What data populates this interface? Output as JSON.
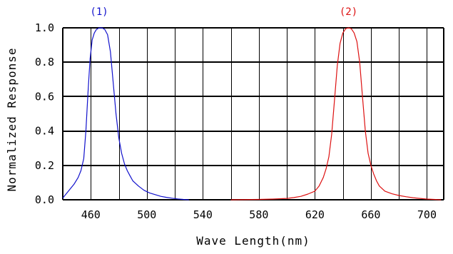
{
  "chart_data": {
    "type": "line",
    "title": "",
    "xlabel": "Wave Length(nm)",
    "ylabel": "Normalized  Response",
    "xlim": [
      440,
      712
    ],
    "ylim": [
      0,
      1.0
    ],
    "x_ticks": [
      460,
      500,
      540,
      580,
      620,
      660,
      700
    ],
    "y_ticks": [
      0.0,
      0.2,
      0.4,
      0.6,
      0.8,
      1.0
    ],
    "y_tick_labels": [
      "0.0",
      "0.2",
      "0.4",
      "0.6",
      "0.8",
      "1.0"
    ],
    "grid": true,
    "series": [
      {
        "name": "(1)",
        "color": "#1111cc",
        "x": [
          440,
          442,
          445,
          448,
          451,
          453,
          455,
          456.5,
          458,
          459.5,
          461,
          462.5,
          464,
          466,
          468,
          470,
          472,
          474,
          476,
          478,
          480,
          482,
          484,
          486,
          488,
          490,
          494,
          498,
          502,
          506,
          510,
          514,
          518,
          522,
          526,
          530
        ],
        "y": [
          0.01,
          0.03,
          0.06,
          0.09,
          0.13,
          0.17,
          0.24,
          0.4,
          0.62,
          0.82,
          0.93,
          0.97,
          0.99,
          1.0,
          1.0,
          0.99,
          0.96,
          0.86,
          0.68,
          0.5,
          0.36,
          0.27,
          0.21,
          0.17,
          0.14,
          0.11,
          0.08,
          0.055,
          0.04,
          0.03,
          0.02,
          0.014,
          0.009,
          0.005,
          0.002,
          0.0
        ]
      },
      {
        "name": "(2)",
        "color": "#dd1111",
        "x": [
          560,
          580,
          590,
          600,
          605,
          610,
          615,
          620,
          623,
          626,
          628,
          630,
          632,
          634,
          636,
          638,
          640,
          642,
          644,
          646,
          648,
          650,
          652,
          654,
          656,
          658,
          660,
          662,
          664,
          666,
          670,
          675,
          680,
          685,
          690,
          695,
          700,
          705,
          710
        ],
        "y": [
          0.0,
          0.002,
          0.004,
          0.008,
          0.013,
          0.02,
          0.033,
          0.05,
          0.08,
          0.13,
          0.18,
          0.25,
          0.38,
          0.58,
          0.78,
          0.91,
          0.97,
          0.995,
          1.0,
          0.995,
          0.97,
          0.92,
          0.8,
          0.6,
          0.4,
          0.27,
          0.2,
          0.15,
          0.11,
          0.08,
          0.05,
          0.035,
          0.025,
          0.018,
          0.012,
          0.008,
          0.004,
          0.002,
          0.0
        ]
      }
    ]
  }
}
